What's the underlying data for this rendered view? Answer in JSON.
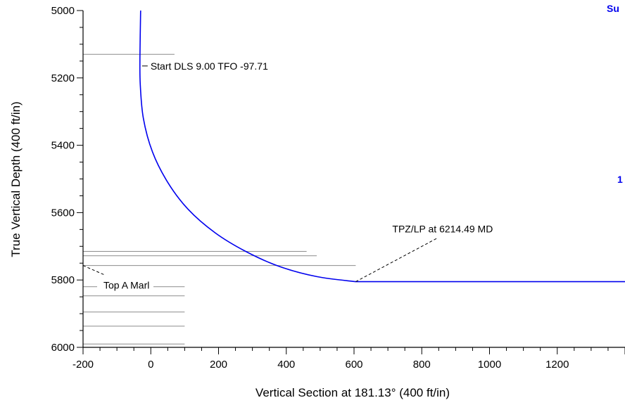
{
  "chart_data": {
    "type": "line",
    "xlabel": "Vertical Section at 181.13° (400 ft/in)",
    "ylabel": "True Vertical Depth (400 ft/in)",
    "xlim": [
      -200,
      1400
    ],
    "ylim": [
      6000,
      5000
    ],
    "y_inverted": true,
    "x_ticks": [
      -200,
      0,
      200,
      400,
      600,
      800,
      1000,
      1200
    ],
    "y_ticks": [
      5000,
      5200,
      5400,
      5600,
      5800,
      6000
    ],
    "grid": false,
    "colors": {
      "wellpath": "#0000ee",
      "formation_lines": "#8c8c8c",
      "axis": "#000000",
      "edge_labels": "#0000ee"
    },
    "series": [
      {
        "points": [
          {
            "x": -30,
            "y": 5000
          },
          {
            "x": -32,
            "y": 5140
          },
          {
            "x": -31,
            "y": 5220
          },
          {
            "x": -22,
            "y": 5320
          },
          {
            "x": 5,
            "y": 5420
          },
          {
            "x": 50,
            "y": 5510
          },
          {
            "x": 110,
            "y": 5590
          },
          {
            "x": 190,
            "y": 5660
          },
          {
            "x": 280,
            "y": 5715
          },
          {
            "x": 380,
            "y": 5760
          },
          {
            "x": 490,
            "y": 5790
          },
          {
            "x": 605,
            "y": 5805
          },
          {
            "x": 1400,
            "y": 5805
          }
        ]
      }
    ],
    "formation_lines": [
      {
        "tvd": 5130,
        "x_end": 70
      },
      {
        "tvd": 5715,
        "x_end": 460
      },
      {
        "tvd": 5728,
        "x_end": 490
      },
      {
        "tvd": 5757,
        "x_end": 605
      },
      {
        "tvd": 5820,
        "x_end": 100
      },
      {
        "tvd": 5847,
        "x_end": 100
      },
      {
        "tvd": 5895,
        "x_end": 100
      },
      {
        "tvd": 5937,
        "x_end": 100
      },
      {
        "tvd": 5990,
        "x_end": 100
      }
    ],
    "annotations": [
      {
        "text": "Start DLS 9.00 TFO -97.71",
        "x": -30,
        "y": 5175
      },
      {
        "text": "TPZ/LP at 6214.49 MD",
        "x": 605,
        "y": 5805
      },
      {
        "text": "Top A Marl",
        "x": -200,
        "y": 5757
      }
    ]
  },
  "edge_labels": {
    "top_right": "Su",
    "mid_right": "1"
  }
}
